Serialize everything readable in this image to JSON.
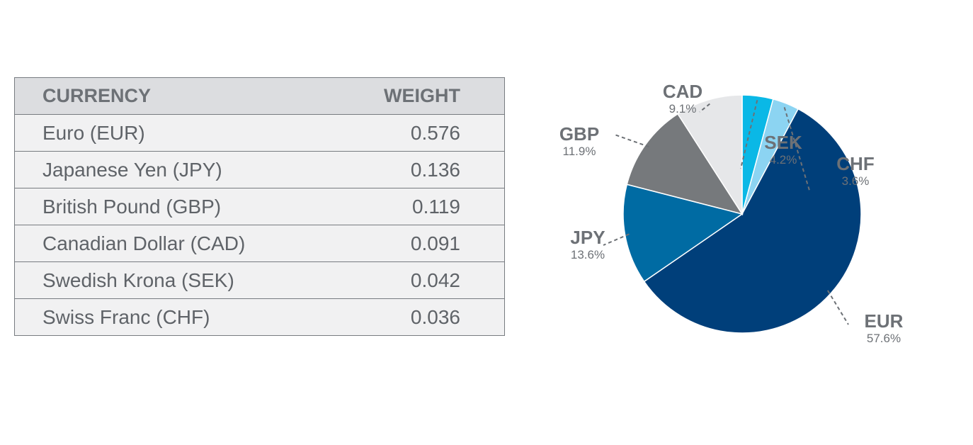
{
  "table": {
    "headers": [
      "CURRENCY",
      "WEIGHT"
    ],
    "rows": [
      {
        "currency": "Euro (EUR)",
        "weight": "0.576"
      },
      {
        "currency": "Japanese Yen (JPY)",
        "weight": "0.136"
      },
      {
        "currency": "British Pound (GBP)",
        "weight": "0.119"
      },
      {
        "currency": "Canadian Dollar (CAD)",
        "weight": "0.091"
      },
      {
        "currency": "Swedish Krona (SEK)",
        "weight": "0.042"
      },
      {
        "currency": "Swiss Franc (CHF)",
        "weight": "0.036"
      }
    ]
  },
  "chart_data": {
    "type": "pie",
    "slices": [
      {
        "label": "SEK",
        "percent_label": "4.2%",
        "value": 4.2,
        "color": "#0ab8e6"
      },
      {
        "label": "CHF",
        "percent_label": "3.6%",
        "value": 3.6,
        "color": "#8cd4f2"
      },
      {
        "label": "EUR",
        "percent_label": "57.6%",
        "value": 57.6,
        "color": "#003f7a"
      },
      {
        "label": "JPY",
        "percent_label": "13.6%",
        "value": 13.6,
        "color": "#006ba3"
      },
      {
        "label": "GBP",
        "percent_label": "11.9%",
        "value": 11.9,
        "color": "#76797c"
      },
      {
        "label": "CAD",
        "percent_label": "9.1%",
        "value": 9.1,
        "color": "#e6e7e9"
      }
    ]
  }
}
